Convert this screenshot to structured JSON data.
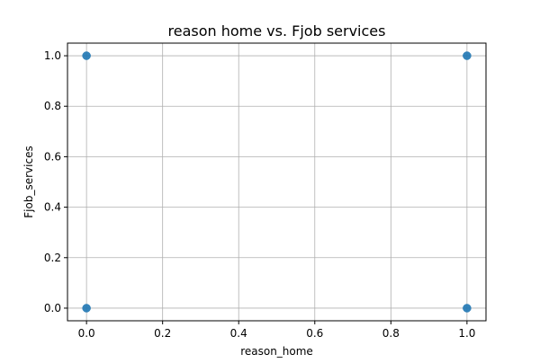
{
  "chart_data": {
    "type": "scatter",
    "title": "reason home vs. Fjob services",
    "xlabel": "reason_home",
    "ylabel": "Fjob_services",
    "xlim": [
      -0.05,
      1.05
    ],
    "ylim": [
      -0.05,
      1.05
    ],
    "xticks": [
      0.0,
      0.2,
      0.4,
      0.6,
      0.8,
      1.0
    ],
    "yticks": [
      0.0,
      0.2,
      0.4,
      0.6,
      0.8,
      1.0
    ],
    "xtick_labels": [
      "0.0",
      "0.2",
      "0.4",
      "0.6",
      "0.8",
      "1.0"
    ],
    "ytick_labels": [
      "0.0",
      "0.2",
      "0.4",
      "0.6",
      "0.8",
      "1.0"
    ],
    "grid": true,
    "points": [
      {
        "x": 0,
        "y": 1
      },
      {
        "x": 1,
        "y": 1
      },
      {
        "x": 0,
        "y": 0
      },
      {
        "x": 1,
        "y": 0
      }
    ],
    "colors": {
      "marker": "#1f77b4",
      "grid": "#b0b0b0",
      "axes": "#000000"
    }
  }
}
